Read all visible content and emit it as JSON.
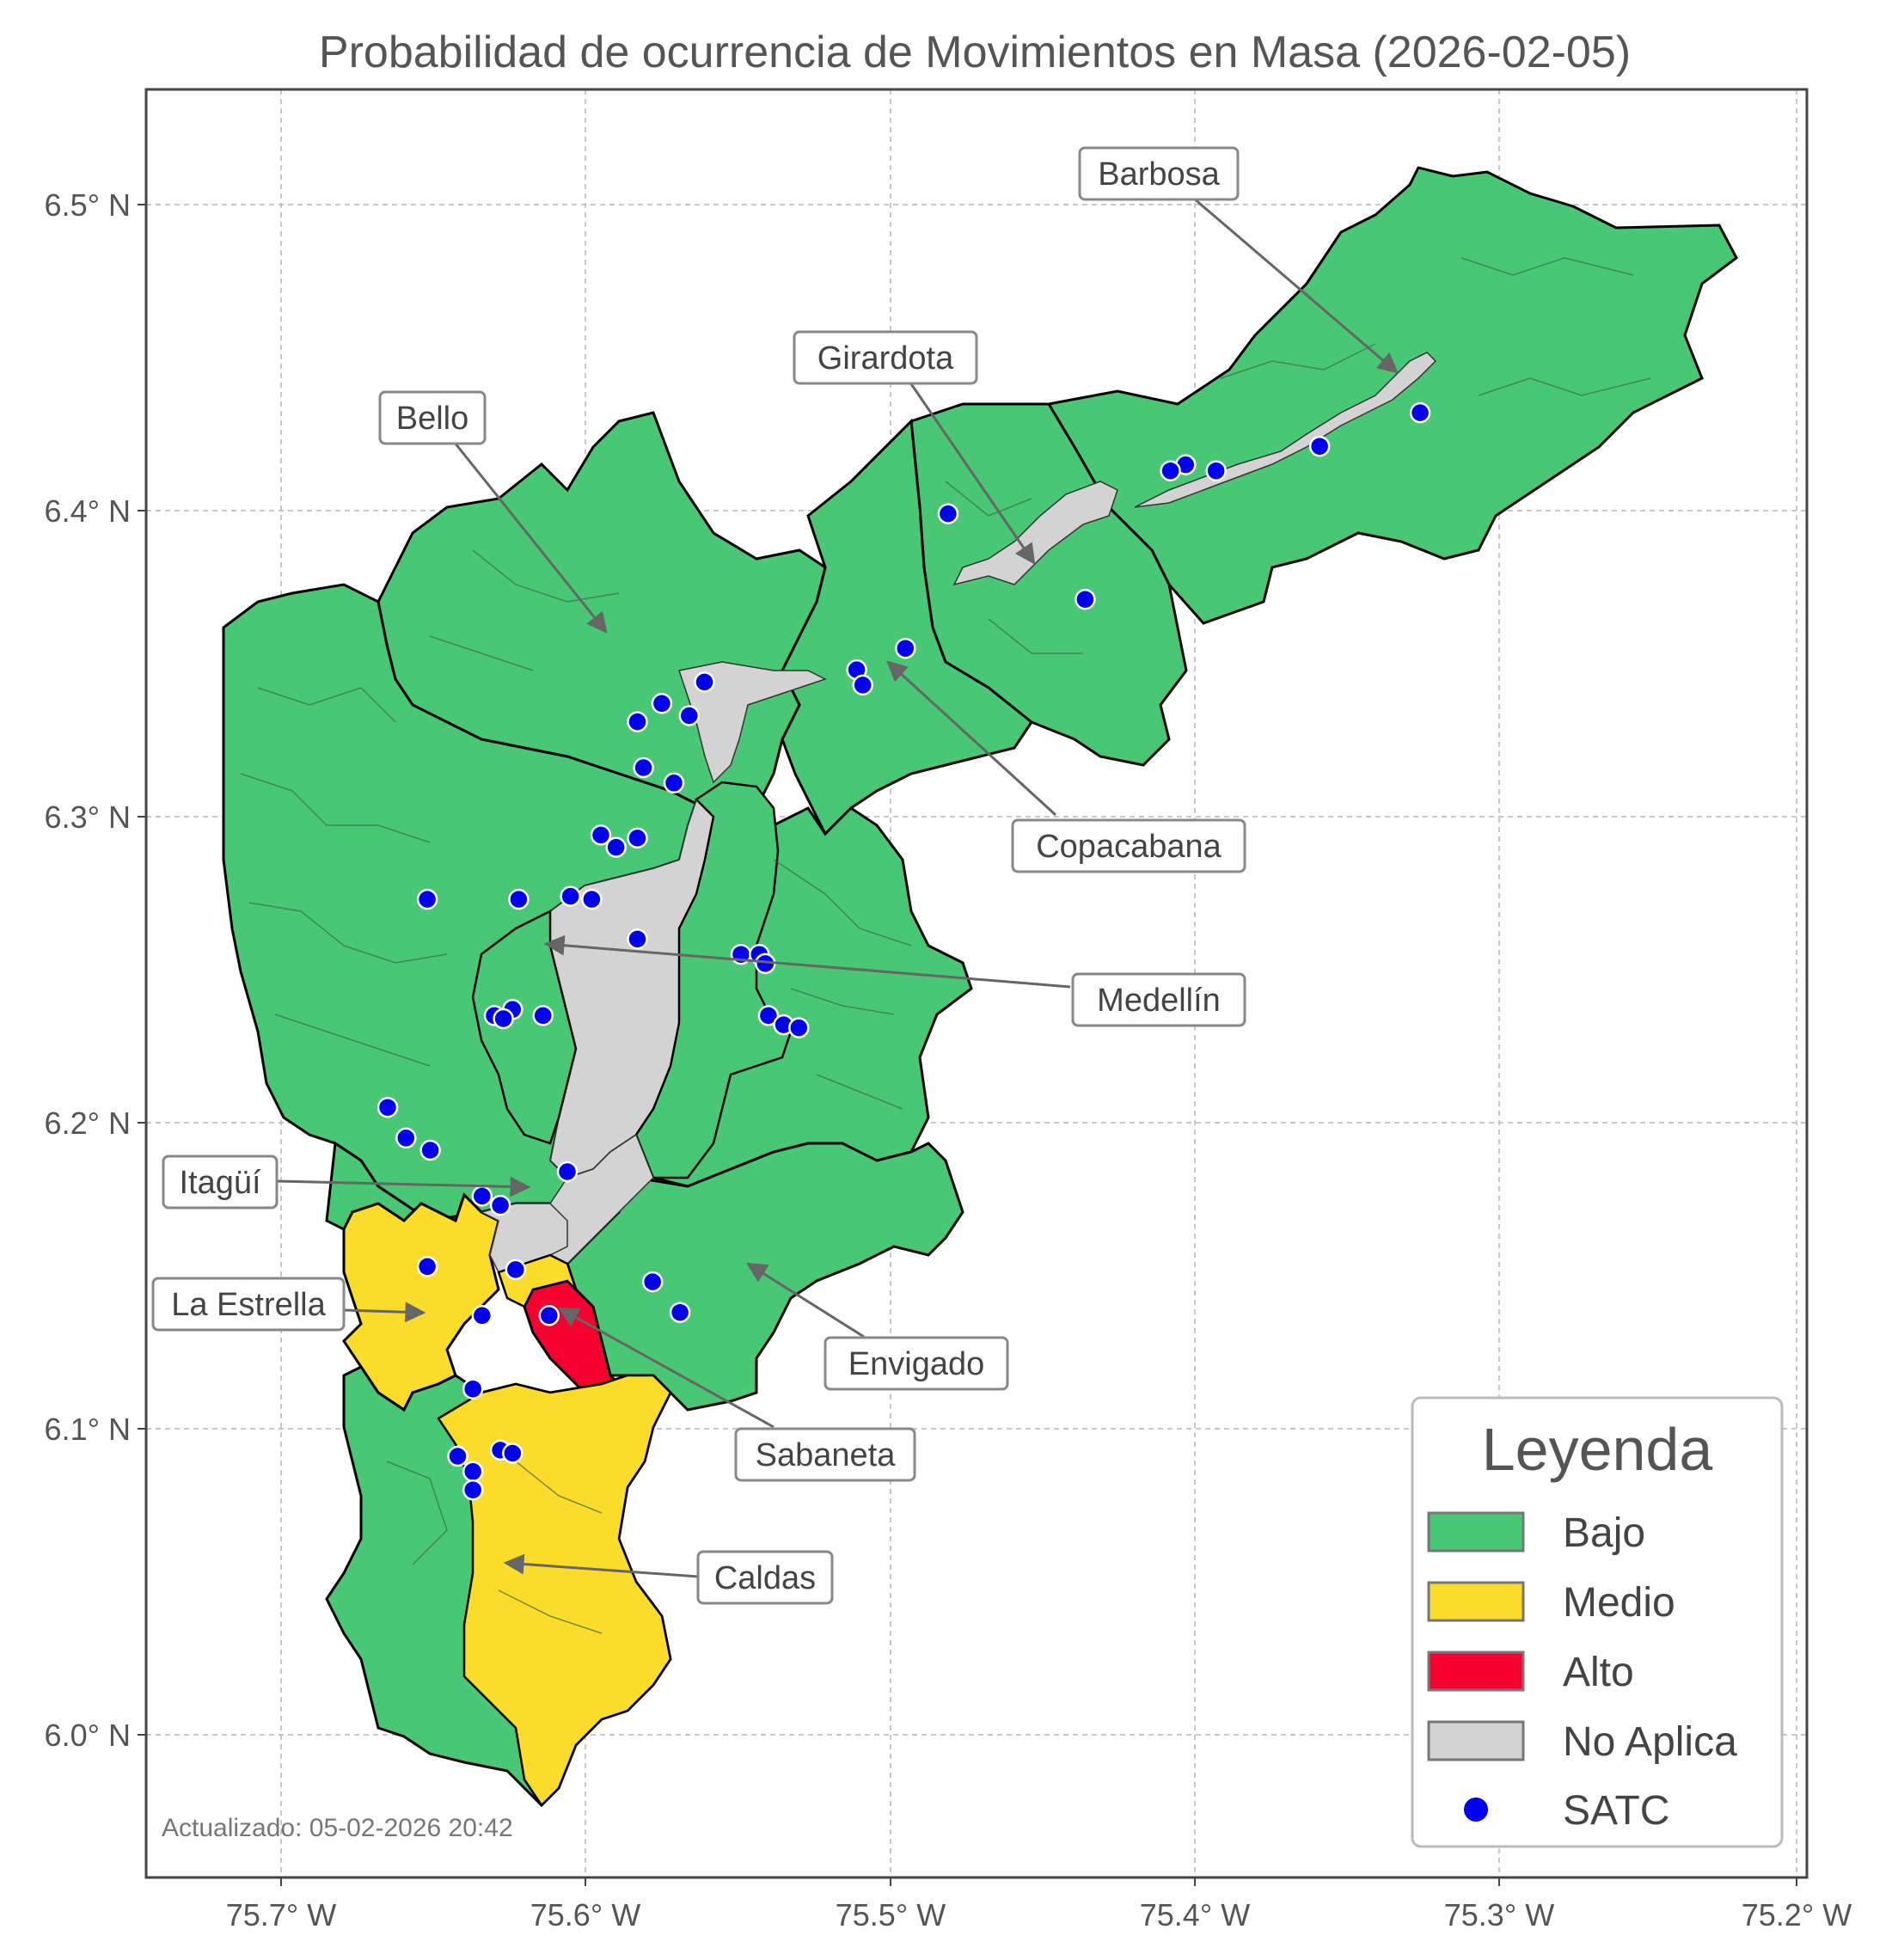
{
  "title": "Probabilidad de ocurrencia de Movimientos en Masa (2026-02-05)",
  "axes": {
    "y_ticks": [
      "6.5° N",
      "6.4° N",
      "6.3° N",
      "6.2° N",
      "6.1° N",
      "6.0° N"
    ],
    "x_ticks": [
      "75.7° W",
      "75.6° W",
      "75.5° W",
      "75.4° W",
      "75.3° W",
      "75.2° W"
    ],
    "grid": true,
    "lon_range": [
      -75.745,
      -75.195
    ],
    "lat_range": [
      5.955,
      6.54
    ]
  },
  "municipalities": [
    {
      "name": "Barbosa",
      "risk": "Bajo"
    },
    {
      "name": "Girardota",
      "risk": "Bajo"
    },
    {
      "name": "Bello",
      "risk": "Bajo"
    },
    {
      "name": "Copacabana",
      "risk": "Bajo"
    },
    {
      "name": "Medellín",
      "risk": "Bajo"
    },
    {
      "name": "Itagüí",
      "risk": "Bajo"
    },
    {
      "name": "La Estrella",
      "risk": "Medio"
    },
    {
      "name": "Envigado",
      "risk": "Bajo"
    },
    {
      "name": "Sabaneta",
      "risk": "Alto"
    },
    {
      "name": "Caldas",
      "risk": "Medio"
    }
  ],
  "legend": {
    "title": "Leyenda",
    "items": [
      {
        "label": "Bajo",
        "color": "#48c774",
        "kind": "patch"
      },
      {
        "label": "Medio",
        "color": "#fbdc2a",
        "kind": "patch"
      },
      {
        "label": "Alto",
        "color": "#f5002f",
        "kind": "patch"
      },
      {
        "label": "No Aplica",
        "color": "#d3d3d3",
        "kind": "patch"
      },
      {
        "label": "SATC",
        "color": "#0000ee",
        "kind": "marker"
      }
    ]
  },
  "updated": "Actualizado: 05-02-2026 20:42",
  "colors": {
    "bajo": "#48c774",
    "medio": "#fbdc2a",
    "alto": "#f5002f",
    "no_aplica": "#d3d3d3",
    "satc": "#0000ee"
  },
  "satc_stations": [
    {
      "lon": -75.326,
      "lat": 6.432
    },
    {
      "lon": -75.359,
      "lat": 6.421
    },
    {
      "lon": -75.393,
      "lat": 6.413
    },
    {
      "lon": -75.403,
      "lat": 6.415
    },
    {
      "lon": -75.408,
      "lat": 6.413
    },
    {
      "lon": -75.481,
      "lat": 6.399
    },
    {
      "lon": -75.436,
      "lat": 6.371
    },
    {
      "lon": -75.495,
      "lat": 6.355
    },
    {
      "lon": -75.511,
      "lat": 6.348
    },
    {
      "lon": -75.509,
      "lat": 6.343
    },
    {
      "lon": -75.561,
      "lat": 6.344
    },
    {
      "lon": -75.566,
      "lat": 6.333
    },
    {
      "lon": -75.575,
      "lat": 6.337
    },
    {
      "lon": -75.583,
      "lat": 6.331
    },
    {
      "lon": -75.581,
      "lat": 6.316
    },
    {
      "lon": -75.571,
      "lat": 6.311
    },
    {
      "lon": -75.595,
      "lat": 6.294
    },
    {
      "lon": -75.59,
      "lat": 6.29
    },
    {
      "lon": -75.583,
      "lat": 6.293
    },
    {
      "lon": -75.652,
      "lat": 6.273
    },
    {
      "lon": -75.622,
      "lat": 6.273
    },
    {
      "lon": -75.605,
      "lat": 6.274
    },
    {
      "lon": -75.598,
      "lat": 6.273
    },
    {
      "lon": -75.583,
      "lat": 6.26
    },
    {
      "lon": -75.549,
      "lat": 6.255
    },
    {
      "lon": -75.543,
      "lat": 6.255
    },
    {
      "lon": -75.541,
      "lat": 6.252
    },
    {
      "lon": -75.54,
      "lat": 6.235
    },
    {
      "lon": -75.535,
      "lat": 6.232
    },
    {
      "lon": -75.53,
      "lat": 6.231
    },
    {
      "lon": -75.624,
      "lat": 6.237
    },
    {
      "lon": -75.63,
      "lat": 6.235
    },
    {
      "lon": -75.627,
      "lat": 6.234
    },
    {
      "lon": -75.614,
      "lat": 6.235
    },
    {
      "lon": -75.665,
      "lat": 6.205
    },
    {
      "lon": -75.659,
      "lat": 6.195
    },
    {
      "lon": -75.651,
      "lat": 6.191
    },
    {
      "lon": -75.606,
      "lat": 6.184
    },
    {
      "lon": -75.634,
      "lat": 6.176
    },
    {
      "lon": -75.628,
      "lat": 6.173
    },
    {
      "lon": -75.652,
      "lat": 6.153
    },
    {
      "lon": -75.623,
      "lat": 6.152
    },
    {
      "lon": -75.578,
      "lat": 6.148
    },
    {
      "lon": -75.569,
      "lat": 6.138
    },
    {
      "lon": -75.634,
      "lat": 6.137
    },
    {
      "lon": -75.612,
      "lat": 6.137
    },
    {
      "lon": -75.637,
      "lat": 6.113
    },
    {
      "lon": -75.628,
      "lat": 6.093
    },
    {
      "lon": -75.624,
      "lat": 6.092
    },
    {
      "lon": -75.642,
      "lat": 6.091
    },
    {
      "lon": -75.637,
      "lat": 6.086
    },
    {
      "lon": -75.637,
      "lat": 6.08
    }
  ]
}
